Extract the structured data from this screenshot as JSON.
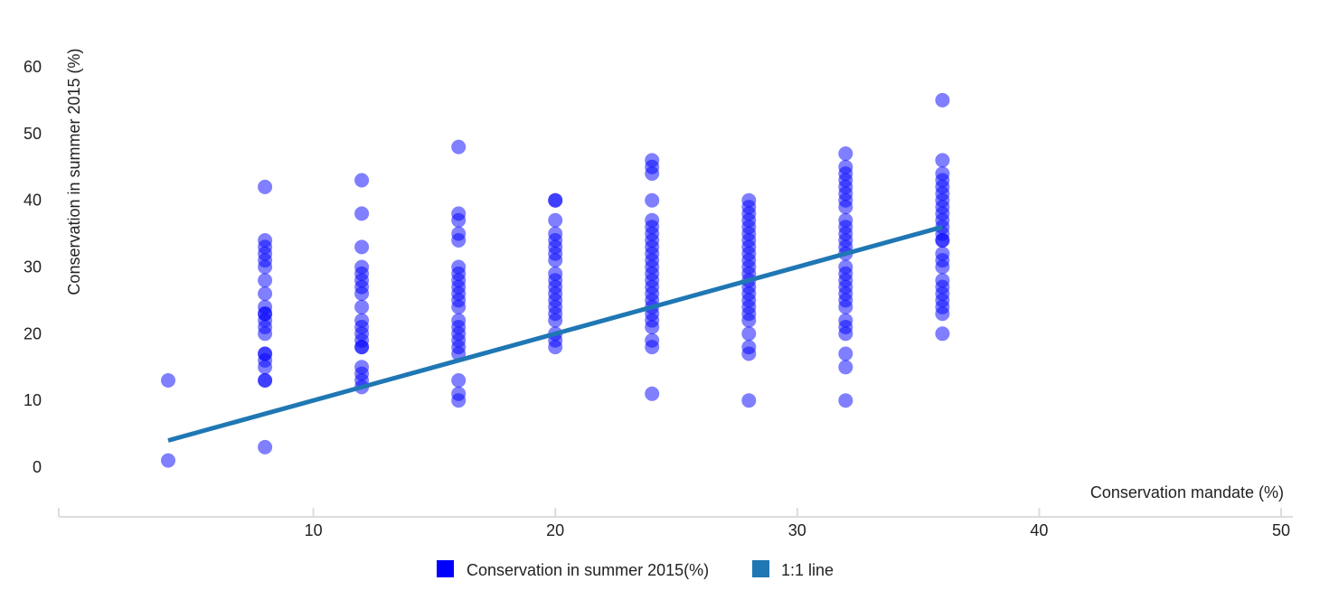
{
  "chart_data": {
    "type": "scatter",
    "xlabel": "Conservation mandate (%)",
    "ylabel": "Conservation in summer 2015 (%)",
    "xlim": [
      0,
      50
    ],
    "ylim": [
      -5,
      65
    ],
    "x_ticks": [
      10,
      20,
      30,
      40,
      50
    ],
    "y_ticks": [
      0,
      10,
      20,
      30,
      40,
      50,
      60
    ],
    "grid": false,
    "legend_position": "bottom-center",
    "series": [
      {
        "name": "Conservation in summer 2015(%)",
        "type": "scatter",
        "color": "#0000ff",
        "points": [
          [
            4,
            1
          ],
          [
            4,
            13
          ],
          [
            8,
            3
          ],
          [
            8,
            13
          ],
          [
            8,
            13
          ],
          [
            8,
            15
          ],
          [
            8,
            16
          ],
          [
            8,
            17
          ],
          [
            8,
            17
          ],
          [
            8,
            20
          ],
          [
            8,
            21
          ],
          [
            8,
            22
          ],
          [
            8,
            23
          ],
          [
            8,
            23
          ],
          [
            8,
            24
          ],
          [
            8,
            26
          ],
          [
            8,
            28
          ],
          [
            8,
            30
          ],
          [
            8,
            31
          ],
          [
            8,
            32
          ],
          [
            8,
            33
          ],
          [
            8,
            34
          ],
          [
            8,
            42
          ],
          [
            12,
            12
          ],
          [
            12,
            13
          ],
          [
            12,
            14
          ],
          [
            12,
            15
          ],
          [
            12,
            18
          ],
          [
            12,
            18
          ],
          [
            12,
            19
          ],
          [
            12,
            20
          ],
          [
            12,
            21
          ],
          [
            12,
            22
          ],
          [
            12,
            24
          ],
          [
            12,
            26
          ],
          [
            12,
            27
          ],
          [
            12,
            28
          ],
          [
            12,
            29
          ],
          [
            12,
            30
          ],
          [
            12,
            33
          ],
          [
            12,
            38
          ],
          [
            12,
            43
          ],
          [
            16,
            10
          ],
          [
            16,
            11
          ],
          [
            16,
            13
          ],
          [
            16,
            17
          ],
          [
            16,
            18
          ],
          [
            16,
            19
          ],
          [
            16,
            20
          ],
          [
            16,
            21
          ],
          [
            16,
            22
          ],
          [
            16,
            24
          ],
          [
            16,
            25
          ],
          [
            16,
            26
          ],
          [
            16,
            27
          ],
          [
            16,
            28
          ],
          [
            16,
            29
          ],
          [
            16,
            30
          ],
          [
            16,
            34
          ],
          [
            16,
            35
          ],
          [
            16,
            37
          ],
          [
            16,
            38
          ],
          [
            16,
            48
          ],
          [
            20,
            18
          ],
          [
            20,
            19
          ],
          [
            20,
            20
          ],
          [
            20,
            22
          ],
          [
            20,
            23
          ],
          [
            20,
            24
          ],
          [
            20,
            25
          ],
          [
            20,
            26
          ],
          [
            20,
            27
          ],
          [
            20,
            28
          ],
          [
            20,
            29
          ],
          [
            20,
            31
          ],
          [
            20,
            32
          ],
          [
            20,
            33
          ],
          [
            20,
            34
          ],
          [
            20,
            35
          ],
          [
            20,
            37
          ],
          [
            20,
            40
          ],
          [
            20,
            40
          ],
          [
            24,
            11
          ],
          [
            24,
            18
          ],
          [
            24,
            19
          ],
          [
            24,
            21
          ],
          [
            24,
            22
          ],
          [
            24,
            23
          ],
          [
            24,
            24
          ],
          [
            24,
            25
          ],
          [
            24,
            26
          ],
          [
            24,
            27
          ],
          [
            24,
            28
          ],
          [
            24,
            29
          ],
          [
            24,
            30
          ],
          [
            24,
            31
          ],
          [
            24,
            32
          ],
          [
            24,
            33
          ],
          [
            24,
            34
          ],
          [
            24,
            35
          ],
          [
            24,
            36
          ],
          [
            24,
            37
          ],
          [
            24,
            40
          ],
          [
            24,
            44
          ],
          [
            24,
            45
          ],
          [
            24,
            46
          ],
          [
            28,
            10
          ],
          [
            28,
            17
          ],
          [
            28,
            18
          ],
          [
            28,
            20
          ],
          [
            28,
            22
          ],
          [
            28,
            23
          ],
          [
            28,
            24
          ],
          [
            28,
            25
          ],
          [
            28,
            26
          ],
          [
            28,
            27
          ],
          [
            28,
            28
          ],
          [
            28,
            29
          ],
          [
            28,
            30
          ],
          [
            28,
            31
          ],
          [
            28,
            32
          ],
          [
            28,
            33
          ],
          [
            28,
            34
          ],
          [
            28,
            35
          ],
          [
            28,
            36
          ],
          [
            28,
            37
          ],
          [
            28,
            38
          ],
          [
            28,
            39
          ],
          [
            28,
            40
          ],
          [
            32,
            10
          ],
          [
            32,
            15
          ],
          [
            32,
            17
          ],
          [
            32,
            20
          ],
          [
            32,
            21
          ],
          [
            32,
            22
          ],
          [
            32,
            24
          ],
          [
            32,
            25
          ],
          [
            32,
            26
          ],
          [
            32,
            27
          ],
          [
            32,
            28
          ],
          [
            32,
            29
          ],
          [
            32,
            30
          ],
          [
            32,
            32
          ],
          [
            32,
            33
          ],
          [
            32,
            34
          ],
          [
            32,
            35
          ],
          [
            32,
            36
          ],
          [
            32,
            37
          ],
          [
            32,
            39
          ],
          [
            32,
            40
          ],
          [
            32,
            41
          ],
          [
            32,
            42
          ],
          [
            32,
            43
          ],
          [
            32,
            44
          ],
          [
            32,
            45
          ],
          [
            32,
            47
          ],
          [
            36,
            20
          ],
          [
            36,
            23
          ],
          [
            36,
            24
          ],
          [
            36,
            25
          ],
          [
            36,
            26
          ],
          [
            36,
            27
          ],
          [
            36,
            28
          ],
          [
            36,
            30
          ],
          [
            36,
            31
          ],
          [
            36,
            32
          ],
          [
            36,
            34
          ],
          [
            36,
            34
          ],
          [
            36,
            35
          ],
          [
            36,
            36
          ],
          [
            36,
            37
          ],
          [
            36,
            38
          ],
          [
            36,
            39
          ],
          [
            36,
            40
          ],
          [
            36,
            41
          ],
          [
            36,
            42
          ],
          [
            36,
            43
          ],
          [
            36,
            44
          ],
          [
            36,
            46
          ],
          [
            36,
            55
          ]
        ]
      },
      {
        "name": "1:1 line",
        "type": "line",
        "color": "#1f77b4",
        "x": [
          4,
          36
        ],
        "y": [
          4,
          36
        ]
      }
    ]
  }
}
